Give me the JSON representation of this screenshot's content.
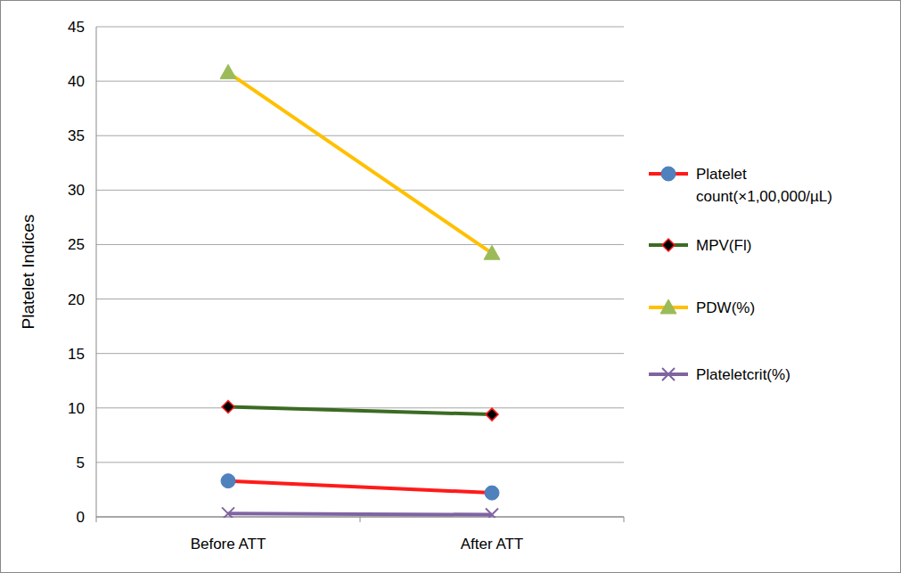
{
  "chart_data": {
    "type": "line",
    "y_label": "Platelet Indices",
    "categories": [
      "Before ATT",
      "After ATT"
    ],
    "series": [
      {
        "name": "Platelet count(×1,00,000/µL)",
        "color": "#ff1a1a",
        "marker": "circle",
        "values": [
          3.3,
          2.2
        ]
      },
      {
        "name": "MPV(Fl)",
        "color": "#3b6b23",
        "marker": "diamond",
        "values": [
          10.1,
          9.4
        ]
      },
      {
        "name": "PDW(%)",
        "color": "#ffc000",
        "marker": "triangle",
        "values": [
          40.8,
          24.2
        ]
      },
      {
        "name": "Plateletcrit(%)",
        "color": "#8064a2",
        "marker": "x",
        "values": [
          0.3,
          0.2
        ]
      }
    ],
    "ylim": [
      0,
      45
    ],
    "yticks": [
      0,
      5,
      10,
      15,
      20,
      25,
      30,
      35,
      40,
      45
    ],
    "grid": true,
    "legend": "right"
  }
}
